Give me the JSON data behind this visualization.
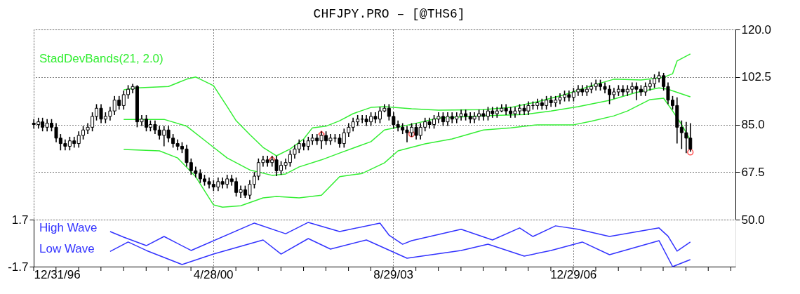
{
  "chart_data": [
    {
      "type": "candlestick",
      "title": "CHFJPY.PRO  –  [@THS6]",
      "color": "#000000",
      "grid": true,
      "legend": "top left",
      "tick_labels": "y",
      "xlim": [
        "1996-12-31",
        "2009-12-31"
      ],
      "xticks": [
        {
          "value": "1996-12-31",
          "label": null
        },
        {
          "value": "2000-04-28",
          "label": null
        },
        {
          "value": "2003-08-29",
          "label": null
        },
        {
          "value": "2006-12-29",
          "label": null
        }
      ],
      "ylim": [
        50,
        120
      ],
      "yticks": [
        {
          "value": 50,
          "label": "50.0"
        },
        67.5,
        {
          "value": 85,
          "label": "85.0"
        },
        102.5,
        {
          "value": 120,
          "label": "120.0"
        }
      ],
      "x": [
        "1997-01",
        "1997-02",
        "1997-03",
        "1997-04",
        "1997-05",
        "1997-06",
        "1997-07",
        "1997-08",
        "1997-09",
        "1997-10",
        "1997-11",
        "1997-12",
        "1998-01",
        "1998-02",
        "1998-03",
        "1998-04",
        "1998-05",
        "1998-06",
        "1998-07",
        "1998-08",
        "1998-09",
        "1998-10",
        "1998-11",
        "1998-12",
        "1999-01",
        "1999-02",
        "1999-03",
        "1999-04",
        "1999-05",
        "1999-06",
        "1999-07",
        "1999-08",
        "1999-09",
        "1999-10",
        "1999-11",
        "1999-12",
        "2000-01",
        "2000-02",
        "2000-03",
        "2000-04",
        "2000-05",
        "2000-06",
        "2000-07",
        "2000-08",
        "2000-09",
        "2000-10",
        "2000-11",
        "2000-12",
        "2001-01",
        "2001-02",
        "2001-03",
        "2001-04",
        "2001-05",
        "2001-06",
        "2001-07",
        "2001-08",
        "2001-09",
        "2001-10",
        "2001-11",
        "2001-12",
        "2002-01",
        "2002-02",
        "2002-03",
        "2002-04",
        "2002-05",
        "2002-06",
        "2002-07",
        "2002-08",
        "2002-09",
        "2002-10",
        "2002-11",
        "2002-12",
        "2003-01",
        "2003-02",
        "2003-03",
        "2003-04",
        "2003-05",
        "2003-06",
        "2003-07",
        "2003-08",
        "2003-09",
        "2003-10",
        "2003-11",
        "2003-12",
        "2004-01",
        "2004-02",
        "2004-03",
        "2004-04",
        "2004-05",
        "2004-06",
        "2004-07",
        "2004-08",
        "2004-09",
        "2004-10",
        "2004-11",
        "2004-12",
        "2005-01",
        "2005-02",
        "2005-03",
        "2005-04",
        "2005-05",
        "2005-06",
        "2005-07",
        "2005-08",
        "2005-09",
        "2005-10",
        "2005-11",
        "2005-12",
        "2006-01",
        "2006-02",
        "2006-03",
        "2006-04",
        "2006-05",
        "2006-06",
        "2006-07",
        "2006-08",
        "2006-09",
        "2006-10",
        "2006-11",
        "2006-12",
        "2007-01",
        "2007-02",
        "2007-03",
        "2007-04",
        "2007-05",
        "2007-06",
        "2007-07",
        "2007-08",
        "2007-09",
        "2007-10",
        "2007-11",
        "2007-12",
        "2008-01",
        "2008-02",
        "2008-03",
        "2008-04",
        "2008-05",
        "2008-06",
        "2008-07",
        "2008-08",
        "2008-09",
        "2008-10",
        "2008-11",
        "2008-12",
        "2009-01",
        "2009-02",
        "2009-03"
      ],
      "ohlc": [
        [
          85.5,
          87,
          83.5,
          85
        ],
        [
          85,
          87.5,
          83.5,
          86
        ],
        [
          86,
          87.5,
          82.5,
          84
        ],
        [
          84,
          87,
          82.5,
          85.5
        ],
        [
          85.5,
          87,
          82.5,
          84
        ],
        [
          84,
          85.5,
          78.5,
          80
        ],
        [
          80,
          81.5,
          75.5,
          78
        ],
        [
          78,
          79.5,
          75.5,
          77
        ],
        [
          77,
          80.5,
          75.5,
          79
        ],
        [
          79,
          80.5,
          76.5,
          78
        ],
        [
          78,
          82.5,
          76.5,
          81
        ],
        [
          81,
          84.5,
          79.5,
          83
        ],
        [
          83,
          85.5,
          81.5,
          84
        ],
        [
          84,
          89.5,
          82.5,
          88
        ],
        [
          88,
          92.5,
          86.5,
          91
        ],
        [
          91,
          92.5,
          85.5,
          87
        ],
        [
          87,
          89.5,
          85.5,
          88
        ],
        [
          88,
          91.5,
          86.5,
          90
        ],
        [
          90,
          95.5,
          88.5,
          94
        ],
        [
          94,
          95.5,
          90.5,
          92
        ],
        [
          92,
          97.5,
          90.5,
          96
        ],
        [
          96,
          99.5,
          94.5,
          98
        ],
        [
          98,
          100,
          96.5,
          99
        ],
        [
          99,
          99.5,
          84,
          86
        ],
        [
          86,
          88.5,
          84.5,
          87
        ],
        [
          87,
          88.5,
          82.5,
          84
        ],
        [
          84,
          86.5,
          82.5,
          85
        ],
        [
          85,
          86.5,
          81.5,
          83
        ],
        [
          83,
          84.5,
          79.5,
          81
        ],
        [
          81,
          84.5,
          77,
          83
        ],
        [
          83,
          84.5,
          78.5,
          80
        ],
        [
          80,
          81.5,
          76.5,
          78
        ],
        [
          78,
          79.5,
          75.5,
          77
        ],
        [
          77,
          78.5,
          74.5,
          76
        ],
        [
          76,
          77.5,
          69.5,
          71
        ],
        [
          71,
          72.5,
          66.5,
          68
        ],
        [
          68,
          69.5,
          65.5,
          67
        ],
        [
          67,
          68.5,
          63.5,
          65
        ],
        [
          65,
          66.5,
          62.5,
          64
        ],
        [
          64,
          65.5,
          61.5,
          63
        ],
        [
          63,
          64.5,
          60.5,
          62
        ],
        [
          62,
          65.5,
          60.5,
          64
        ],
        [
          64,
          65.5,
          61.5,
          63
        ],
        [
          63,
          66.5,
          61.5,
          65
        ],
        [
          65,
          66.5,
          62.5,
          64
        ],
        [
          64,
          65.5,
          58.5,
          60
        ],
        [
          60,
          62.5,
          58,
          61
        ],
        [
          61,
          62.5,
          58,
          59
        ],
        [
          59,
          64.5,
          57.5,
          63
        ],
        [
          63,
          67.5,
          61.5,
          66
        ],
        [
          66,
          72.5,
          64.5,
          71
        ],
        [
          71,
          73.5,
          69.5,
          72
        ],
        [
          72,
          73.5,
          69.5,
          71
        ],
        [
          71,
          73.5,
          69.5,
          72
        ],
        [
          72,
          73.5,
          66,
          68
        ],
        [
          68,
          71.5,
          66.5,
          70
        ],
        [
          70,
          72.5,
          68.5,
          71
        ],
        [
          71,
          75.5,
          69.5,
          74
        ],
        [
          74,
          77.5,
          72.5,
          76
        ],
        [
          76,
          79.5,
          74.5,
          78
        ],
        [
          78,
          79.5,
          75.5,
          77
        ],
        [
          77,
          80.5,
          75.5,
          79
        ],
        [
          79,
          81.5,
          77.5,
          80
        ],
        [
          80,
          81.5,
          77.5,
          79
        ],
        [
          79,
          82.5,
          76,
          81
        ],
        [
          81,
          82.5,
          77.5,
          79
        ],
        [
          79,
          81.5,
          77.5,
          80
        ],
        [
          80,
          81.5,
          78.5,
          80
        ],
        [
          80,
          81.5,
          76.5,
          78
        ],
        [
          78,
          83.5,
          76.5,
          82
        ],
        [
          82,
          85.5,
          80.5,
          84
        ],
        [
          84,
          87.5,
          82.5,
          86
        ],
        [
          86,
          88.5,
          84.5,
          87
        ],
        [
          87,
          88.5,
          85.5,
          87
        ],
        [
          87,
          88.5,
          84.5,
          86
        ],
        [
          86,
          89.5,
          84.5,
          88
        ],
        [
          88,
          89.5,
          85.5,
          87
        ],
        [
          87,
          91.5,
          85.5,
          90
        ],
        [
          90,
          92.5,
          89.5,
          91
        ],
        [
          91,
          92.5,
          86.5,
          88
        ],
        [
          88,
          89.5,
          83.5,
          85
        ],
        [
          85,
          86.5,
          82.5,
          84
        ],
        [
          84,
          85.5,
          81.5,
          83
        ],
        [
          83,
          84.5,
          78.5,
          82
        ],
        [
          82,
          85.5,
          80.5,
          84
        ],
        [
          84,
          85.5,
          79.5,
          81
        ],
        [
          81,
          85.5,
          79.5,
          84
        ],
        [
          84,
          87.5,
          82.5,
          86
        ],
        [
          86,
          87.5,
          83.5,
          85
        ],
        [
          85,
          88.5,
          83.5,
          87
        ],
        [
          87,
          89.5,
          85.5,
          88
        ],
        [
          88,
          89.5,
          84.5,
          86
        ],
        [
          86,
          89.5,
          84.5,
          88
        ],
        [
          88,
          89.5,
          85.5,
          87
        ],
        [
          87,
          89.5,
          85.5,
          88
        ],
        [
          88,
          90.5,
          86.5,
          89
        ],
        [
          89,
          90.5,
          86.5,
          88
        ],
        [
          88,
          89.5,
          85.5,
          87
        ],
        [
          87,
          89.5,
          85.5,
          88
        ],
        [
          88,
          90.5,
          86.5,
          89
        ],
        [
          89,
          90.5,
          86.5,
          88
        ],
        [
          88,
          91.5,
          86.5,
          90
        ],
        [
          90,
          91.5,
          87.5,
          89
        ],
        [
          89,
          91.5,
          87.5,
          90
        ],
        [
          90,
          92.5,
          89.5,
          91
        ],
        [
          91,
          92.5,
          88.5,
          90
        ],
        [
          90,
          91.5,
          87.5,
          89
        ],
        [
          89,
          91.5,
          87.5,
          90
        ],
        [
          90,
          92.5,
          88.5,
          91
        ],
        [
          91,
          92.5,
          88.5,
          90
        ],
        [
          90,
          93.5,
          88.5,
          92
        ],
        [
          92,
          93.5,
          90.5,
          92
        ],
        [
          92,
          94.5,
          90.5,
          93
        ],
        [
          93,
          94.5,
          90.5,
          92
        ],
        [
          92,
          95.5,
          90.5,
          94
        ],
        [
          94,
          95.5,
          91.5,
          93
        ],
        [
          93,
          95.5,
          91.5,
          94
        ],
        [
          94,
          96.5,
          92.5,
          95
        ],
        [
          95,
          97.5,
          93.5,
          96
        ],
        [
          96,
          97.5,
          93.5,
          95
        ],
        [
          95,
          98.5,
          93.5,
          97
        ],
        [
          97,
          99.5,
          95.5,
          98
        ],
        [
          98,
          99.5,
          95.5,
          97
        ],
        [
          97,
          99.5,
          95.5,
          98
        ],
        [
          98,
          100.5,
          96.5,
          99
        ],
        [
          99,
          101.5,
          97.5,
          100
        ],
        [
          100,
          101.5,
          97.5,
          99
        ],
        [
          99,
          100.5,
          96.5,
          98
        ],
        [
          98,
          99.5,
          92.5,
          96
        ],
        [
          96,
          98.5,
          94.5,
          97
        ],
        [
          97,
          99.5,
          95.5,
          98
        ],
        [
          98,
          99.5,
          95.5,
          97
        ],
        [
          97,
          99.5,
          95.5,
          98
        ],
        [
          98,
          100.5,
          96.5,
          99
        ],
        [
          99,
          100.5,
          94,
          98
        ],
        [
          98,
          99.5,
          95.5,
          97
        ],
        [
          97,
          100.5,
          95.5,
          99
        ],
        [
          99,
          101.5,
          97.5,
          100
        ],
        [
          100,
          103.5,
          98.5,
          102
        ],
        [
          102,
          104.5,
          100.5,
          103
        ],
        [
          103,
          104,
          97.5,
          99
        ],
        [
          99,
          100.5,
          92.5,
          94
        ],
        [
          94,
          95.5,
          90.5,
          92
        ],
        [
          92,
          95,
          78,
          84
        ],
        [
          84,
          86.5,
          76,
          82
        ],
        [
          82,
          86,
          74.5,
          80
        ],
        [
          80,
          85.5,
          75,
          76
        ]
      ],
      "series": [
        {
          "type": "line",
          "name": "StadDevBands(21, 2.0)",
          "color": "#33ee33",
          "x": [
            "1998-09",
            "1998-12",
            "1999-07",
            "1999-11",
            "2000-01",
            "2000-02",
            "2000-05",
            "2000-08",
            "2000-10",
            "2001-01",
            "2001-04",
            "2001-07",
            "2001-10",
            "2002-01",
            "2002-03",
            "2002-06",
            "2002-09",
            "2002-12",
            "2003-04",
            "2003-07",
            "2004-01",
            "2004-07",
            "2005-05",
            "2005-11",
            "2006-05",
            "2006-11",
            "2007-05",
            "2007-10",
            "2008-04",
            "2008-09",
            "2008-11",
            "2008-12",
            "2009-03"
          ],
          "values": [
            97.8,
            98.5,
            99,
            101.7,
            102.5,
            101.7,
            99.3,
            91.6,
            86.4,
            81.3,
            76.6,
            73.5,
            76,
            79.7,
            83.8,
            84.4,
            86.4,
            89,
            91.3,
            91.6,
            90.8,
            90.3,
            90.5,
            91.3,
            93.4,
            96,
            99.3,
            101.7,
            101.4,
            102.4,
            103.7,
            108.4,
            111
          ]
        },
        {
          "type": "line",
          "color": "#33ee33",
          "x": [
            "1998-09",
            "1999-06",
            "1999-11",
            "2000-04",
            "2000-08",
            "2001-01",
            "2001-06",
            "2001-09",
            "2001-12",
            "2002-05",
            "2002-09",
            "2003-04",
            "2003-07",
            "2004-01",
            "2004-07",
            "2005-05",
            "2006-02",
            "2006-08",
            "2007-02",
            "2007-09",
            "2008-03",
            "2008-08",
            "2008-10",
            "2009-03"
          ],
          "values": [
            86.9,
            86.9,
            84.4,
            77.9,
            72.7,
            68.3,
            66.3,
            66.8,
            69.4,
            72,
            74.5,
            78.7,
            83,
            85.1,
            87.4,
            88.2,
            88.7,
            90,
            91.6,
            93.9,
            96.8,
            98.5,
            98,
            95.2
          ]
        },
        {
          "type": "line",
          "color": "#33ee33",
          "x": [
            "1998-09",
            "1999-05",
            "1999-09",
            "2000-01",
            "2000-05",
            "2000-07",
            "2000-11",
            "2001-04",
            "2001-07",
            "2001-12",
            "2002-05",
            "2002-09",
            "2003-02",
            "2003-07",
            "2003-10",
            "2004-04",
            "2004-10",
            "2005-05",
            "2005-11",
            "2006-05",
            "2007-01",
            "2007-05",
            "2007-10",
            "2008-01",
            "2008-06",
            "2008-09",
            "2008-11",
            "2009-01",
            "2009-03"
          ],
          "values": [
            75.8,
            75.3,
            72.7,
            65.8,
            55.4,
            54.6,
            55.1,
            58,
            58.5,
            58,
            59,
            65.8,
            67,
            70.9,
            75.3,
            77.9,
            79.7,
            83,
            83.8,
            84.9,
            84.9,
            86.2,
            88.2,
            90,
            94.2,
            94.7,
            90,
            85,
            79.2
          ]
        },
        {
          "type": "scatter",
          "marker": "diamond",
          "color": "#ff0000",
          "x": [
            "2001-06",
            "2002-05"
          ],
          "values": [
            72.2,
            81.5
          ]
        },
        {
          "type": "scatter",
          "marker": "circle",
          "color": "#ff0000",
          "x": [
            "2004-01",
            "2009-03"
          ],
          "values": [
            81.5,
            74.8
          ]
        }
      ]
    },
    {
      "type": "line",
      "grid": true,
      "legend": "top left",
      "xlim": [
        "1996-12-31",
        "2009-12-31"
      ],
      "xticks": [
        {
          "value": "1996-12-31",
          "label": "12/31/96"
        },
        {
          "value": "1997-05-31",
          "label": null
        },
        {
          "value": "1997-10-31",
          "label": null
        },
        {
          "value": "1998-03-31",
          "label": null
        },
        {
          "value": "1998-08-31",
          "label": null
        },
        {
          "value": "1999-01-31",
          "label": null
        },
        {
          "value": "1999-06-30",
          "label": null
        },
        {
          "value": "1999-11-30",
          "label": null
        },
        {
          "value": "2000-04-28",
          "label": "4/28/00"
        },
        {
          "value": "2000-09-29",
          "label": null
        },
        {
          "value": "2001-02-28",
          "label": null
        },
        {
          "value": "2001-07-31",
          "label": null
        },
        {
          "value": "2001-12-31",
          "label": null
        },
        {
          "value": "2002-05-31",
          "label": null
        },
        {
          "value": "2002-10-31",
          "label": null
        },
        {
          "value": "2003-03-31",
          "label": null
        },
        {
          "value": "2003-08-29",
          "label": "8/29/03"
        },
        {
          "value": "2004-01-30",
          "label": null
        },
        {
          "value": "2004-06-30",
          "label": null
        },
        {
          "value": "2004-11-30",
          "label": null
        },
        {
          "value": "2005-04-29",
          "label": null
        },
        {
          "value": "2005-09-30",
          "label": null
        },
        {
          "value": "2006-02-28",
          "label": null
        },
        {
          "value": "2006-07-31",
          "label": null
        },
        {
          "value": "2006-12-29",
          "label": "12/29/06"
        },
        {
          "value": "2007-05-31",
          "label": null
        },
        {
          "value": "2007-10-31",
          "label": null
        },
        {
          "value": "2008-03-31",
          "label": null
        },
        {
          "value": "2008-08-29",
          "label": null
        },
        {
          "value": "2009-01-30",
          "label": null
        },
        {
          "value": "2009-06-30",
          "label": null
        },
        {
          "value": "2009-11-30",
          "label": null
        }
      ],
      "ylim": [
        -1.7,
        1.7
      ],
      "yticks": [
        1.7,
        -1.7
      ],
      "series": [
        {
          "name": "High Wave",
          "color": "#3333ff",
          "x": [
            "1998-06",
            "1998-09",
            "1999-02",
            "1999-06",
            "1999-12",
            "2001-02",
            "2001-09",
            "2002-02",
            "2002-09",
            "2003-06",
            "2003-08",
            "2003-11",
            "2004-01",
            "2004-12",
            "2005-07",
            "2006-01",
            "2006-04",
            "2006-09",
            "2007-02",
            "2007-09",
            "2008-08",
            "2008-10",
            "2008-12",
            "2009-03"
          ],
          "values": [
            0.84,
            0.43,
            -0.18,
            0.48,
            -0.53,
            1.45,
            0.68,
            1.5,
            0.84,
            1.45,
            0.58,
            -0.08,
            0.18,
            1.0,
            0.23,
            1.1,
            0.48,
            1.25,
            1.0,
            0.48,
            1.1,
            0.5,
            -0.58,
            0.08
          ]
        },
        {
          "name": "Low Wave",
          "color": "#3333ff",
          "x": [
            "1998-06",
            "1998-10",
            "1999-02",
            "1999-10",
            "2000-05",
            "2001-04",
            "2001-08",
            "2002-02",
            "2002-07",
            "2003-03",
            "2003-12",
            "2004-12",
            "2005-06",
            "2006-02",
            "2006-08",
            "2007-03",
            "2007-09",
            "2008-08",
            "2008-11",
            "2009-03"
          ],
          "values": [
            -0.6,
            0.08,
            -0.53,
            -1.55,
            -0.79,
            0.23,
            -0.79,
            0.33,
            -0.43,
            0.23,
            -1.09,
            -0.53,
            -0.08,
            -0.94,
            -0.53,
            0.08,
            -0.84,
            0.18,
            -1.7,
            -1.19
          ]
        }
      ]
    }
  ]
}
